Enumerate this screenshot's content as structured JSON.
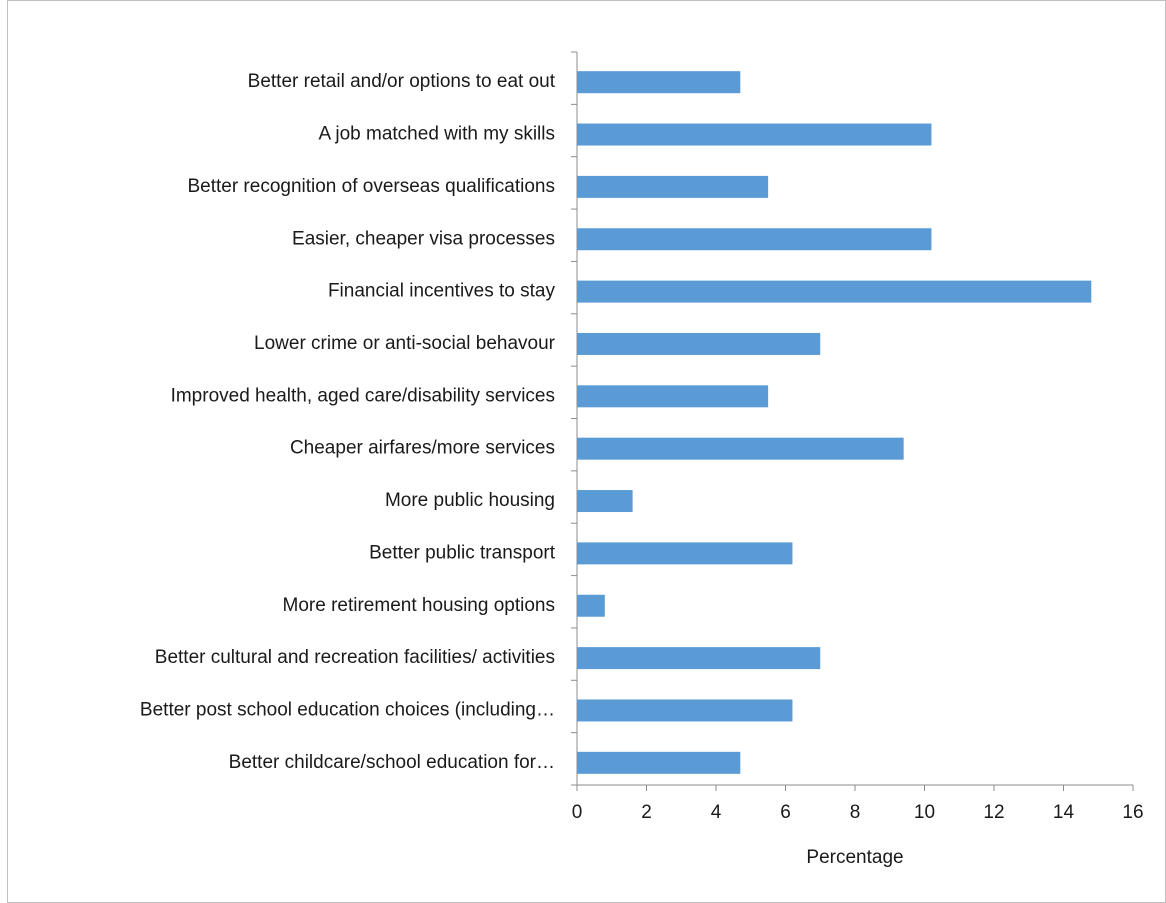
{
  "chart_data": {
    "type": "bar",
    "orientation": "horizontal",
    "categories": [
      "Better retail and/or options to eat out",
      "A job matched with my skills",
      "Better recognition of overseas qualifications",
      "Easier, cheaper visa processes",
      "Financial incentives to stay",
      "Lower crime or anti-social behavour",
      "Improved health, aged care/disability services",
      "Cheaper airfares/more services",
      "More public housing",
      "Better public transport",
      "More retirement housing options",
      "Better cultural and recreation facilities/ activities",
      "Better post school education choices (including…",
      "Better childcare/school education for…"
    ],
    "values": [
      4.7,
      10.2,
      5.5,
      10.2,
      14.8,
      7.0,
      5.5,
      9.4,
      1.6,
      6.2,
      0.8,
      7.0,
      6.2,
      4.7
    ],
    "color": "#5b9bd5",
    "x_label": "Percentage",
    "xlim": [
      0,
      16
    ],
    "xticks": [
      0,
      2,
      4,
      6,
      8,
      10,
      12,
      14,
      16
    ],
    "grid": false
  }
}
